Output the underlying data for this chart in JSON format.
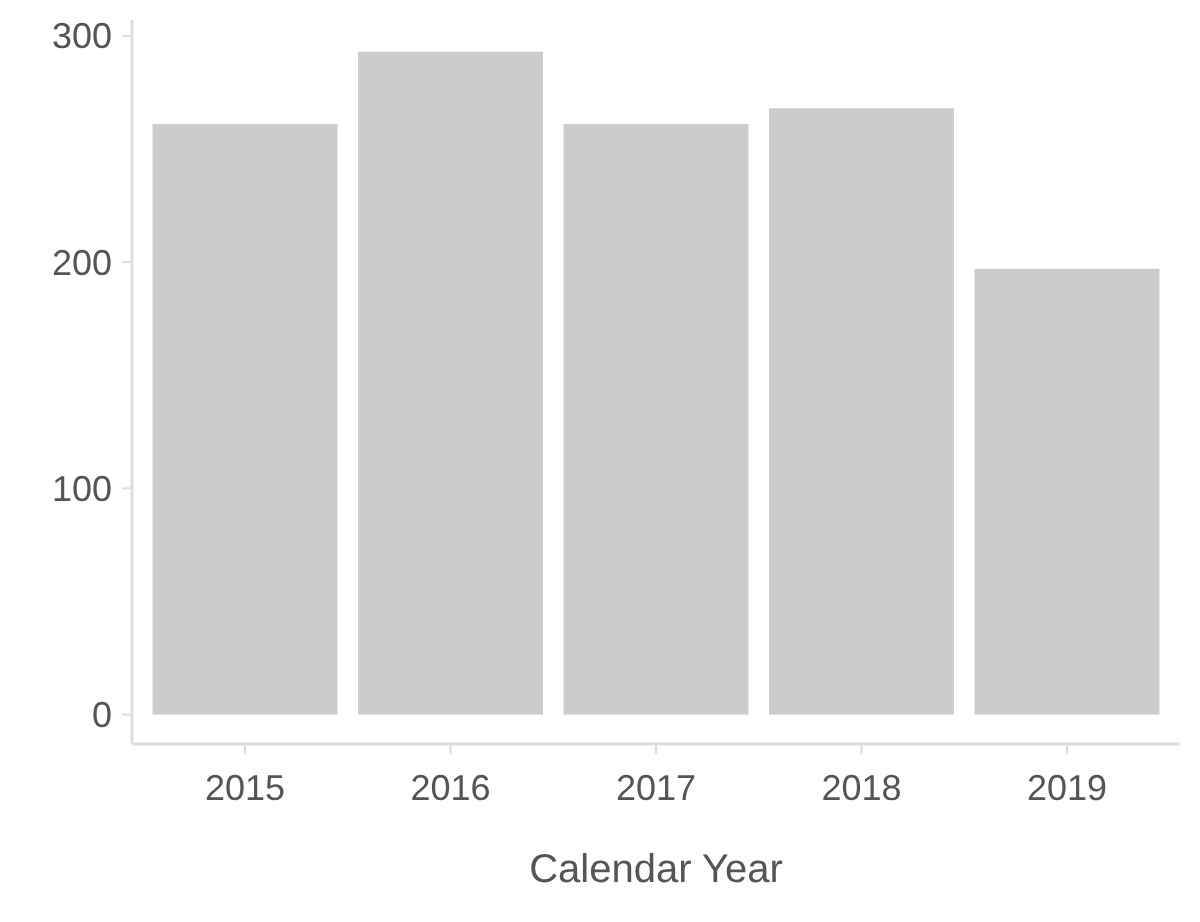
{
  "chart_data": {
    "type": "bar",
    "xlabel": "Calendar Year",
    "categories": [
      "2015",
      "2016",
      "2017",
      "2018",
      "2019"
    ],
    "values": [
      261,
      293,
      261,
      268,
      197
    ],
    "color": "#cccccc",
    "ylim": [
      -13,
      307
    ],
    "yticks": [
      0,
      100,
      200,
      300
    ],
    "grid": false
  }
}
